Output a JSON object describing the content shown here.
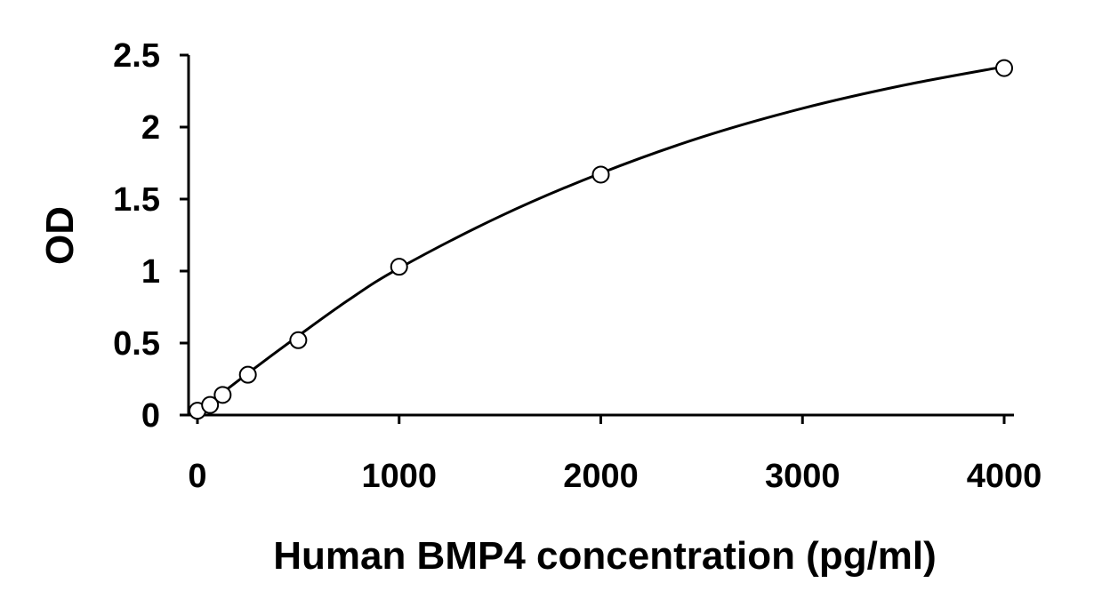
{
  "chart_data": {
    "type": "scatter",
    "title": "",
    "xlabel": "Human BMP4 concentration (pg/ml)",
    "ylabel": "OD",
    "xlim": [
      0,
      4000
    ],
    "ylim": [
      0,
      2.5
    ],
    "x_ticks": [
      "0",
      "1000",
      "2000",
      "3000",
      "4000"
    ],
    "x_tick_values": [
      0,
      1000,
      2000,
      3000,
      4000
    ],
    "y_ticks": [
      "0",
      "0.5",
      "1",
      "1.5",
      "2",
      "2.5"
    ],
    "y_tick_values": [
      0,
      0.5,
      1,
      1.5,
      2,
      2.5
    ],
    "grid": false,
    "legend": "none",
    "series": [
      {
        "marker": "open-circle",
        "x": [
          0,
          62.5,
          125,
          250,
          500,
          1000,
          2000,
          4000
        ],
        "y": [
          0.03,
          0.07,
          0.14,
          0.28,
          0.52,
          1.03,
          1.67,
          2.41
        ]
      }
    ],
    "fit_curve": {
      "style": "smooth-line",
      "x": [
        0,
        250,
        500,
        750,
        1000,
        1500,
        2000,
        2500,
        3000,
        3500,
        4000
      ],
      "y": [
        0.02,
        0.29,
        0.55,
        0.8,
        1.02,
        1.38,
        1.68,
        1.93,
        2.13,
        2.29,
        2.42
      ]
    }
  }
}
